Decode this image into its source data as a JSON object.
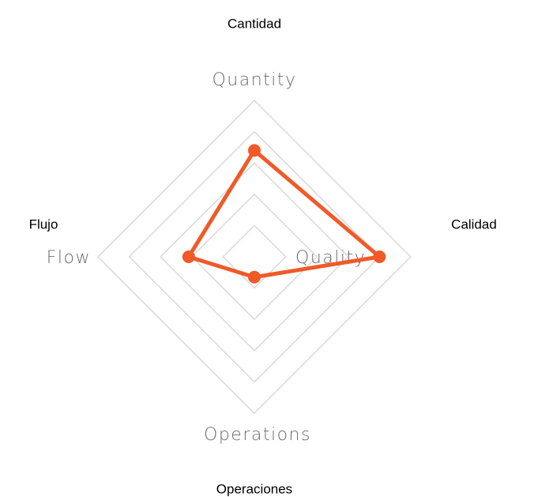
{
  "chart_data": {
    "type": "radar",
    "categories": [
      "Quantity",
      "Quality",
      "Operations",
      "Flow"
    ],
    "values": [
      3.4,
      4,
      0.65,
      2.1
    ],
    "color": "#f05a28",
    "ylim": [
      0,
      5
    ],
    "yticks": [
      1,
      2,
      3,
      4,
      5
    ],
    "grid": true,
    "annotations": [
      "Cantidad",
      "Calidad",
      "Operaciones",
      "Flujo"
    ]
  }
}
